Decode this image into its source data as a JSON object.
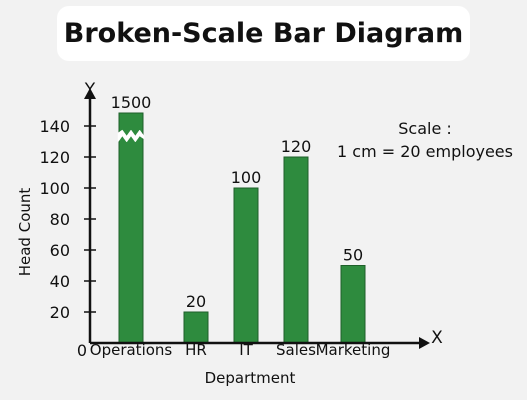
{
  "title": "Broken-Scale Bar Diagram",
  "colors": {
    "bar": "#2e8b3e",
    "bar_stroke": "#1f5f2a",
    "axis": "#111111",
    "background": "#f2f2f2"
  },
  "chart_data": {
    "type": "bar",
    "title": "Broken-Scale Bar Diagram",
    "xlabel": "Department",
    "ylabel": "Head Count",
    "x_axis_letter": "X",
    "y_axis_letter": "Y",
    "origin_label": "0",
    "categories": [
      "Operations",
      "HR",
      "IT",
      "Sales",
      "Marketing"
    ],
    "values": [
      1500,
      20,
      100,
      120,
      50
    ],
    "value_labels": [
      "1500",
      "20",
      "100",
      "120",
      "50"
    ],
    "broken": [
      true,
      false,
      false,
      false,
      false
    ],
    "y_ticks": [
      20,
      40,
      60,
      80,
      100,
      120,
      140
    ],
    "ylim": [
      0,
      150
    ],
    "scale_note": [
      "Scale :",
      "1 cm = 20 employees"
    ],
    "grid": false,
    "legend": "none"
  }
}
